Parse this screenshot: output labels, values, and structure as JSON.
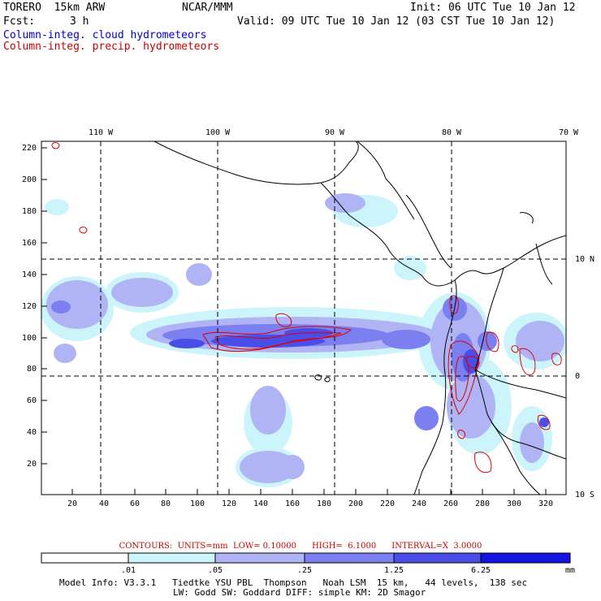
{
  "header": {
    "model_line": "TORERO  15km ARW",
    "org": "NCAR/MMM",
    "init": "Init: 06 UTC Tue 10 Jan 12",
    "fcst_label": "Fcst:",
    "fcst_value": "3 h",
    "valid": "Valid: 09 UTC Tue 10 Jan 12 (03 CST Tue 10 Jan 12)",
    "field1": "Column-integ. cloud hydrometeors",
    "field2": "Column-integ. precip. hydrometeors"
  },
  "map": {
    "lon_labels": [
      "110 W",
      "100 W",
      "90 W",
      "80 W",
      "70 W"
    ],
    "lat_labels": [
      "10 N",
      "0",
      "10 S"
    ],
    "y_ticks": [
      "220",
      "200",
      "180",
      "160",
      "140",
      "120",
      "100",
      "80",
      "60",
      "40",
      "20"
    ],
    "x_ticks": [
      "20",
      "40",
      "60",
      "80",
      "100",
      "120",
      "140",
      "160",
      "180",
      "200",
      "220",
      "240",
      "260",
      "280",
      "300",
      "320"
    ],
    "colors": {
      "cloud_lightest": "#ccf5fb",
      "cloud_light": "#b0b4f4",
      "cloud_mid": "#7b7ff0",
      "cloud_dark": "#4a4ee6",
      "cloud_darkest": "#1414e0",
      "precip_contour": "#dd0000",
      "coastline": "#000000"
    }
  },
  "contour_info": "CONTOURS:  UNITS=mm  LOW= 0.10000      HIGH=  6.1000      INTERVAL=X  3.0000",
  "colorbar": {
    "labels": [
      ".01",
      ".05",
      ".25",
      "1.25",
      "6.25"
    ],
    "units": "mm",
    "colors": [
      "#ffffff",
      "#ccf5fb",
      "#b0b4f4",
      "#7b7ff0",
      "#4a4ee6",
      "#1414e0"
    ]
  },
  "footer": {
    "line1": "Model Info: V3.3.1   Tiedtke YSU PBL  Thompson   Noah LSM  15 km,   44 levels,  138 sec",
    "line2": "LW: Godd SW: Goddard DIFF: simple KM: 2D Smagor"
  }
}
